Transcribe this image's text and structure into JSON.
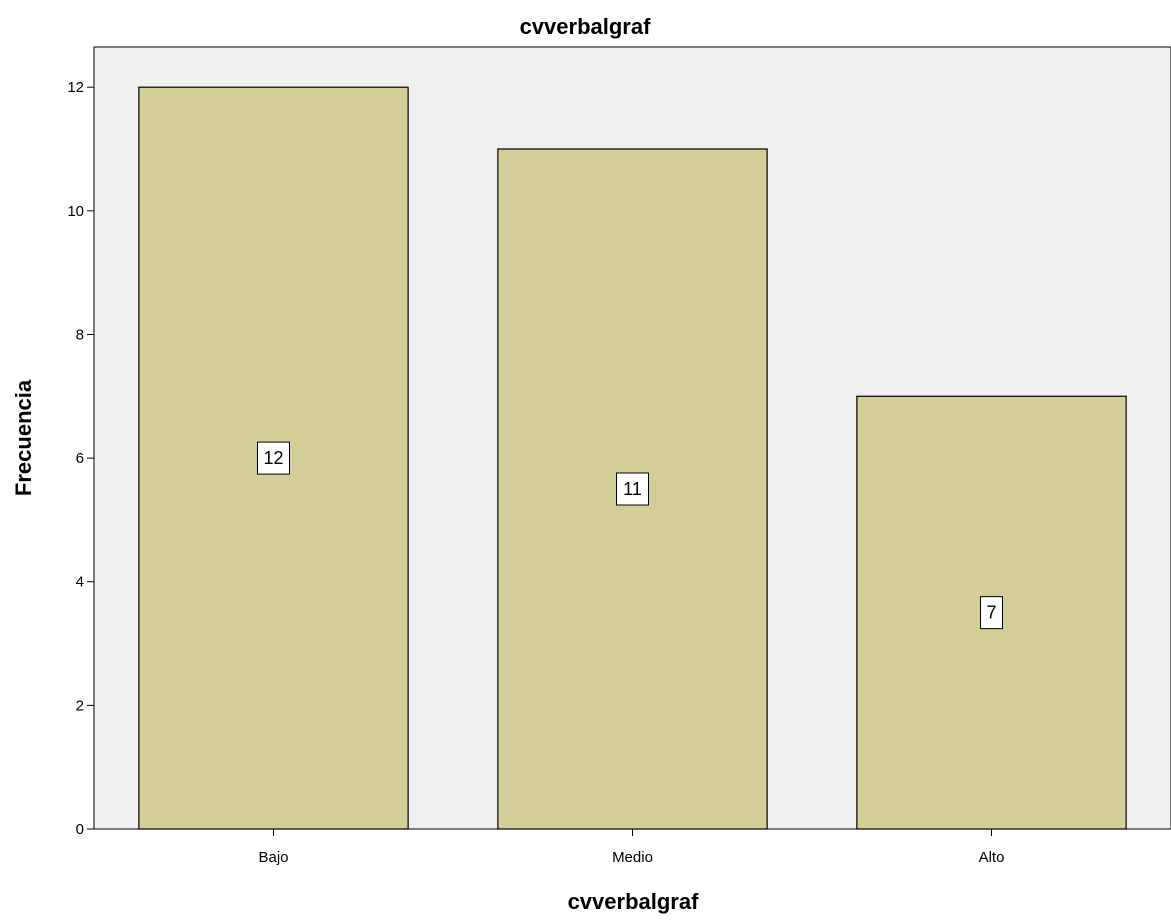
{
  "chart_data": {
    "type": "bar",
    "title": "cvverbalgraf",
    "xlabel": "cvverbalgraf",
    "ylabel": "Frecuencia",
    "categories": [
      "Bajo",
      "Medio",
      "Alto"
    ],
    "values": [
      12,
      11,
      7
    ],
    "data_labels": [
      "12",
      "11",
      "7"
    ],
    "yticks": [
      0,
      2,
      4,
      6,
      8,
      10,
      12
    ],
    "ylim": [
      0,
      12.65
    ],
    "grid": false,
    "legend": "none",
    "colors": {
      "bar_fill": "#d3ce97",
      "bar_stroke": "#000000",
      "plot_background": "#f0f0f0",
      "page_background": "#ffffff"
    }
  }
}
